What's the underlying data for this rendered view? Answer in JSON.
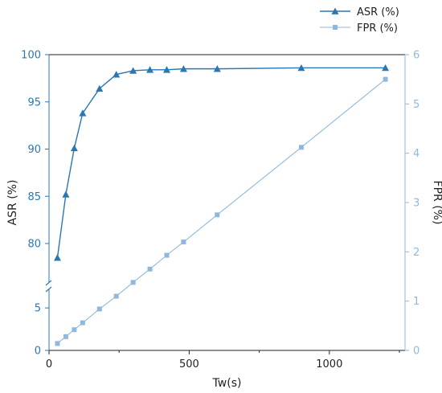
{
  "chart_data": {
    "type": "line",
    "title": "",
    "xlabel": "Tw(s)",
    "xlim": [
      0,
      1270
    ],
    "xticks": [
      0,
      500,
      1000
    ],
    "xtick_labels": [
      "0",
      "500",
      "1000"
    ],
    "y_left": {
      "label": "ASR (%)",
      "axis_break": true,
      "lower_segment": {
        "range": [
          0,
          7
        ],
        "ticks": [
          0,
          5
        ],
        "tick_labels": [
          "0",
          "5"
        ]
      },
      "upper_segment": {
        "range": [
          76,
          100
        ],
        "ticks": [
          80,
          85,
          90,
          95,
          100
        ],
        "tick_labels": [
          "80",
          "85",
          "90",
          "95",
          "100"
        ]
      },
      "color": "#2a77b2"
    },
    "y_right": {
      "label": "FPR (%)",
      "range": [
        0,
        6
      ],
      "ticks": [
        0,
        1,
        2,
        3,
        4,
        5,
        6
      ],
      "tick_labels": [
        "0",
        "1",
        "2",
        "3",
        "4",
        "5",
        "6"
      ],
      "color": "#8fb8dc"
    },
    "legend_position": "top-right",
    "series": [
      {
        "name": "ASR (%)",
        "axis": "left",
        "marker": "triangle",
        "color": "#2a77b2",
        "x": [
          30,
          60,
          90,
          120,
          180,
          240,
          300,
          360,
          420,
          480,
          600,
          900,
          1200
        ],
        "y": [
          78.5,
          85.2,
          90.1,
          93.8,
          96.4,
          97.9,
          98.3,
          98.4,
          98.4,
          98.5,
          98.5,
          98.6,
          98.6
        ]
      },
      {
        "name": "FPR (%)",
        "axis": "right",
        "marker": "square",
        "color": "#8fb8dc",
        "x": [
          30,
          60,
          90,
          120,
          180,
          240,
          300,
          360,
          420,
          480,
          600,
          900,
          1200
        ],
        "y": [
          0.14,
          0.28,
          0.42,
          0.56,
          0.84,
          1.1,
          1.38,
          1.65,
          1.93,
          2.2,
          2.75,
          4.12,
          5.5
        ]
      }
    ]
  }
}
